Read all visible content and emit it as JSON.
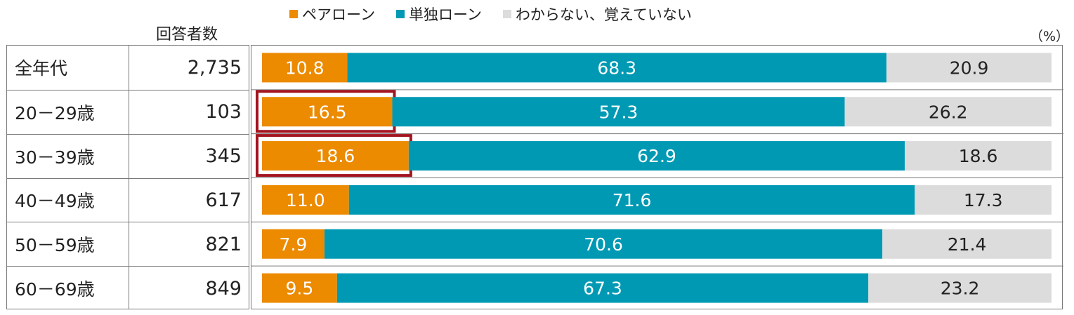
{
  "chart_data": {
    "type": "bar",
    "orientation": "horizontal",
    "stacked": "percent",
    "unit_label": "（%）",
    "n_header": "回答者数",
    "categories": [
      "全年代",
      "20－29歳",
      "30－39歳",
      "40－49歳",
      "50－59歳",
      "60－69歳"
    ],
    "respondents": [
      "2,735",
      "103",
      "345",
      "617",
      "821",
      "849"
    ],
    "series": [
      {
        "name": "ペアローン",
        "color": "#ec8a00",
        "values": [
          10.8,
          16.5,
          18.6,
          11.0,
          7.9,
          9.5
        ]
      },
      {
        "name": "単独ローン",
        "color": "#0099b3",
        "values": [
          68.3,
          57.3,
          62.9,
          71.6,
          70.6,
          67.3
        ]
      },
      {
        "name": "わからない、覚えていない",
        "color": "#dcdcdc",
        "values": [
          20.9,
          26.2,
          18.6,
          17.3,
          21.4,
          23.2
        ]
      }
    ],
    "value_labels": [
      [
        "10.8",
        "68.3",
        "20.9"
      ],
      [
        "16.5",
        "57.3",
        "26.2"
      ],
      [
        "18.6",
        "62.9",
        "18.6"
      ],
      [
        "11.0",
        "71.6",
        "17.3"
      ],
      [
        "7.9",
        "70.6",
        "21.4"
      ],
      [
        "9.5",
        "67.3",
        "23.2"
      ]
    ],
    "highlighted": [
      {
        "category": "20－29歳",
        "series": "ペアローン"
      },
      {
        "category": "30－39歳",
        "series": "ペアローン"
      }
    ],
    "highlight_color": "#a31420",
    "legend_position": "top",
    "xlim": [
      0,
      100
    ],
    "grid": false
  }
}
